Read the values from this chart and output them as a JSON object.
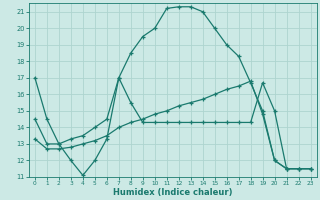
{
  "xlabel": "Humidex (Indice chaleur)",
  "bg_color": "#cce9e5",
  "grid_color": "#aed4cf",
  "line_color": "#1a7a6e",
  "xlim": [
    -0.5,
    23.5
  ],
  "ylim": [
    11,
    21.5
  ],
  "yticks": [
    11,
    12,
    13,
    14,
    15,
    16,
    17,
    18,
    19,
    20,
    21
  ],
  "xticks": [
    0,
    1,
    2,
    3,
    4,
    5,
    6,
    7,
    8,
    9,
    10,
    11,
    12,
    13,
    14,
    15,
    16,
    17,
    18,
    19,
    20,
    21,
    22,
    23
  ],
  "line1_x": [
    0,
    1,
    2,
    3,
    4,
    5,
    6,
    7,
    8,
    9,
    10,
    11,
    12,
    13,
    14,
    15,
    16,
    17,
    18,
    19,
    20,
    21,
    22,
    23
  ],
  "line1_y": [
    17.0,
    14.5,
    13.0,
    12.0,
    11.1,
    12.0,
    13.3,
    17.0,
    15.5,
    14.3,
    14.3,
    14.3,
    14.3,
    14.3,
    14.3,
    14.3,
    14.3,
    14.3,
    14.3,
    16.7,
    15.0,
    11.5,
    11.5,
    11.5
  ],
  "line2_x": [
    0,
    1,
    2,
    3,
    4,
    5,
    6,
    7,
    8,
    9,
    10,
    11,
    12,
    13,
    14,
    15,
    16,
    17,
    18,
    19,
    20,
    21,
    22,
    23
  ],
  "line2_y": [
    14.5,
    13.0,
    13.0,
    13.3,
    13.5,
    14.0,
    14.5,
    17.0,
    18.5,
    19.5,
    20.0,
    21.2,
    21.3,
    21.3,
    21.0,
    20.0,
    19.0,
    18.3,
    16.7,
    15.0,
    12.0,
    11.5,
    11.5,
    11.5
  ],
  "line3_x": [
    0,
    1,
    2,
    3,
    4,
    5,
    6,
    7,
    8,
    9,
    10,
    11,
    12,
    13,
    14,
    15,
    16,
    17,
    18,
    19,
    20,
    21,
    22,
    23
  ],
  "line3_y": [
    13.3,
    12.7,
    12.7,
    12.8,
    13.0,
    13.2,
    13.5,
    14.0,
    14.3,
    14.5,
    14.8,
    15.0,
    15.3,
    15.5,
    15.7,
    16.0,
    16.3,
    16.5,
    16.8,
    14.8,
    12.0,
    11.5,
    11.5,
    11.5
  ]
}
